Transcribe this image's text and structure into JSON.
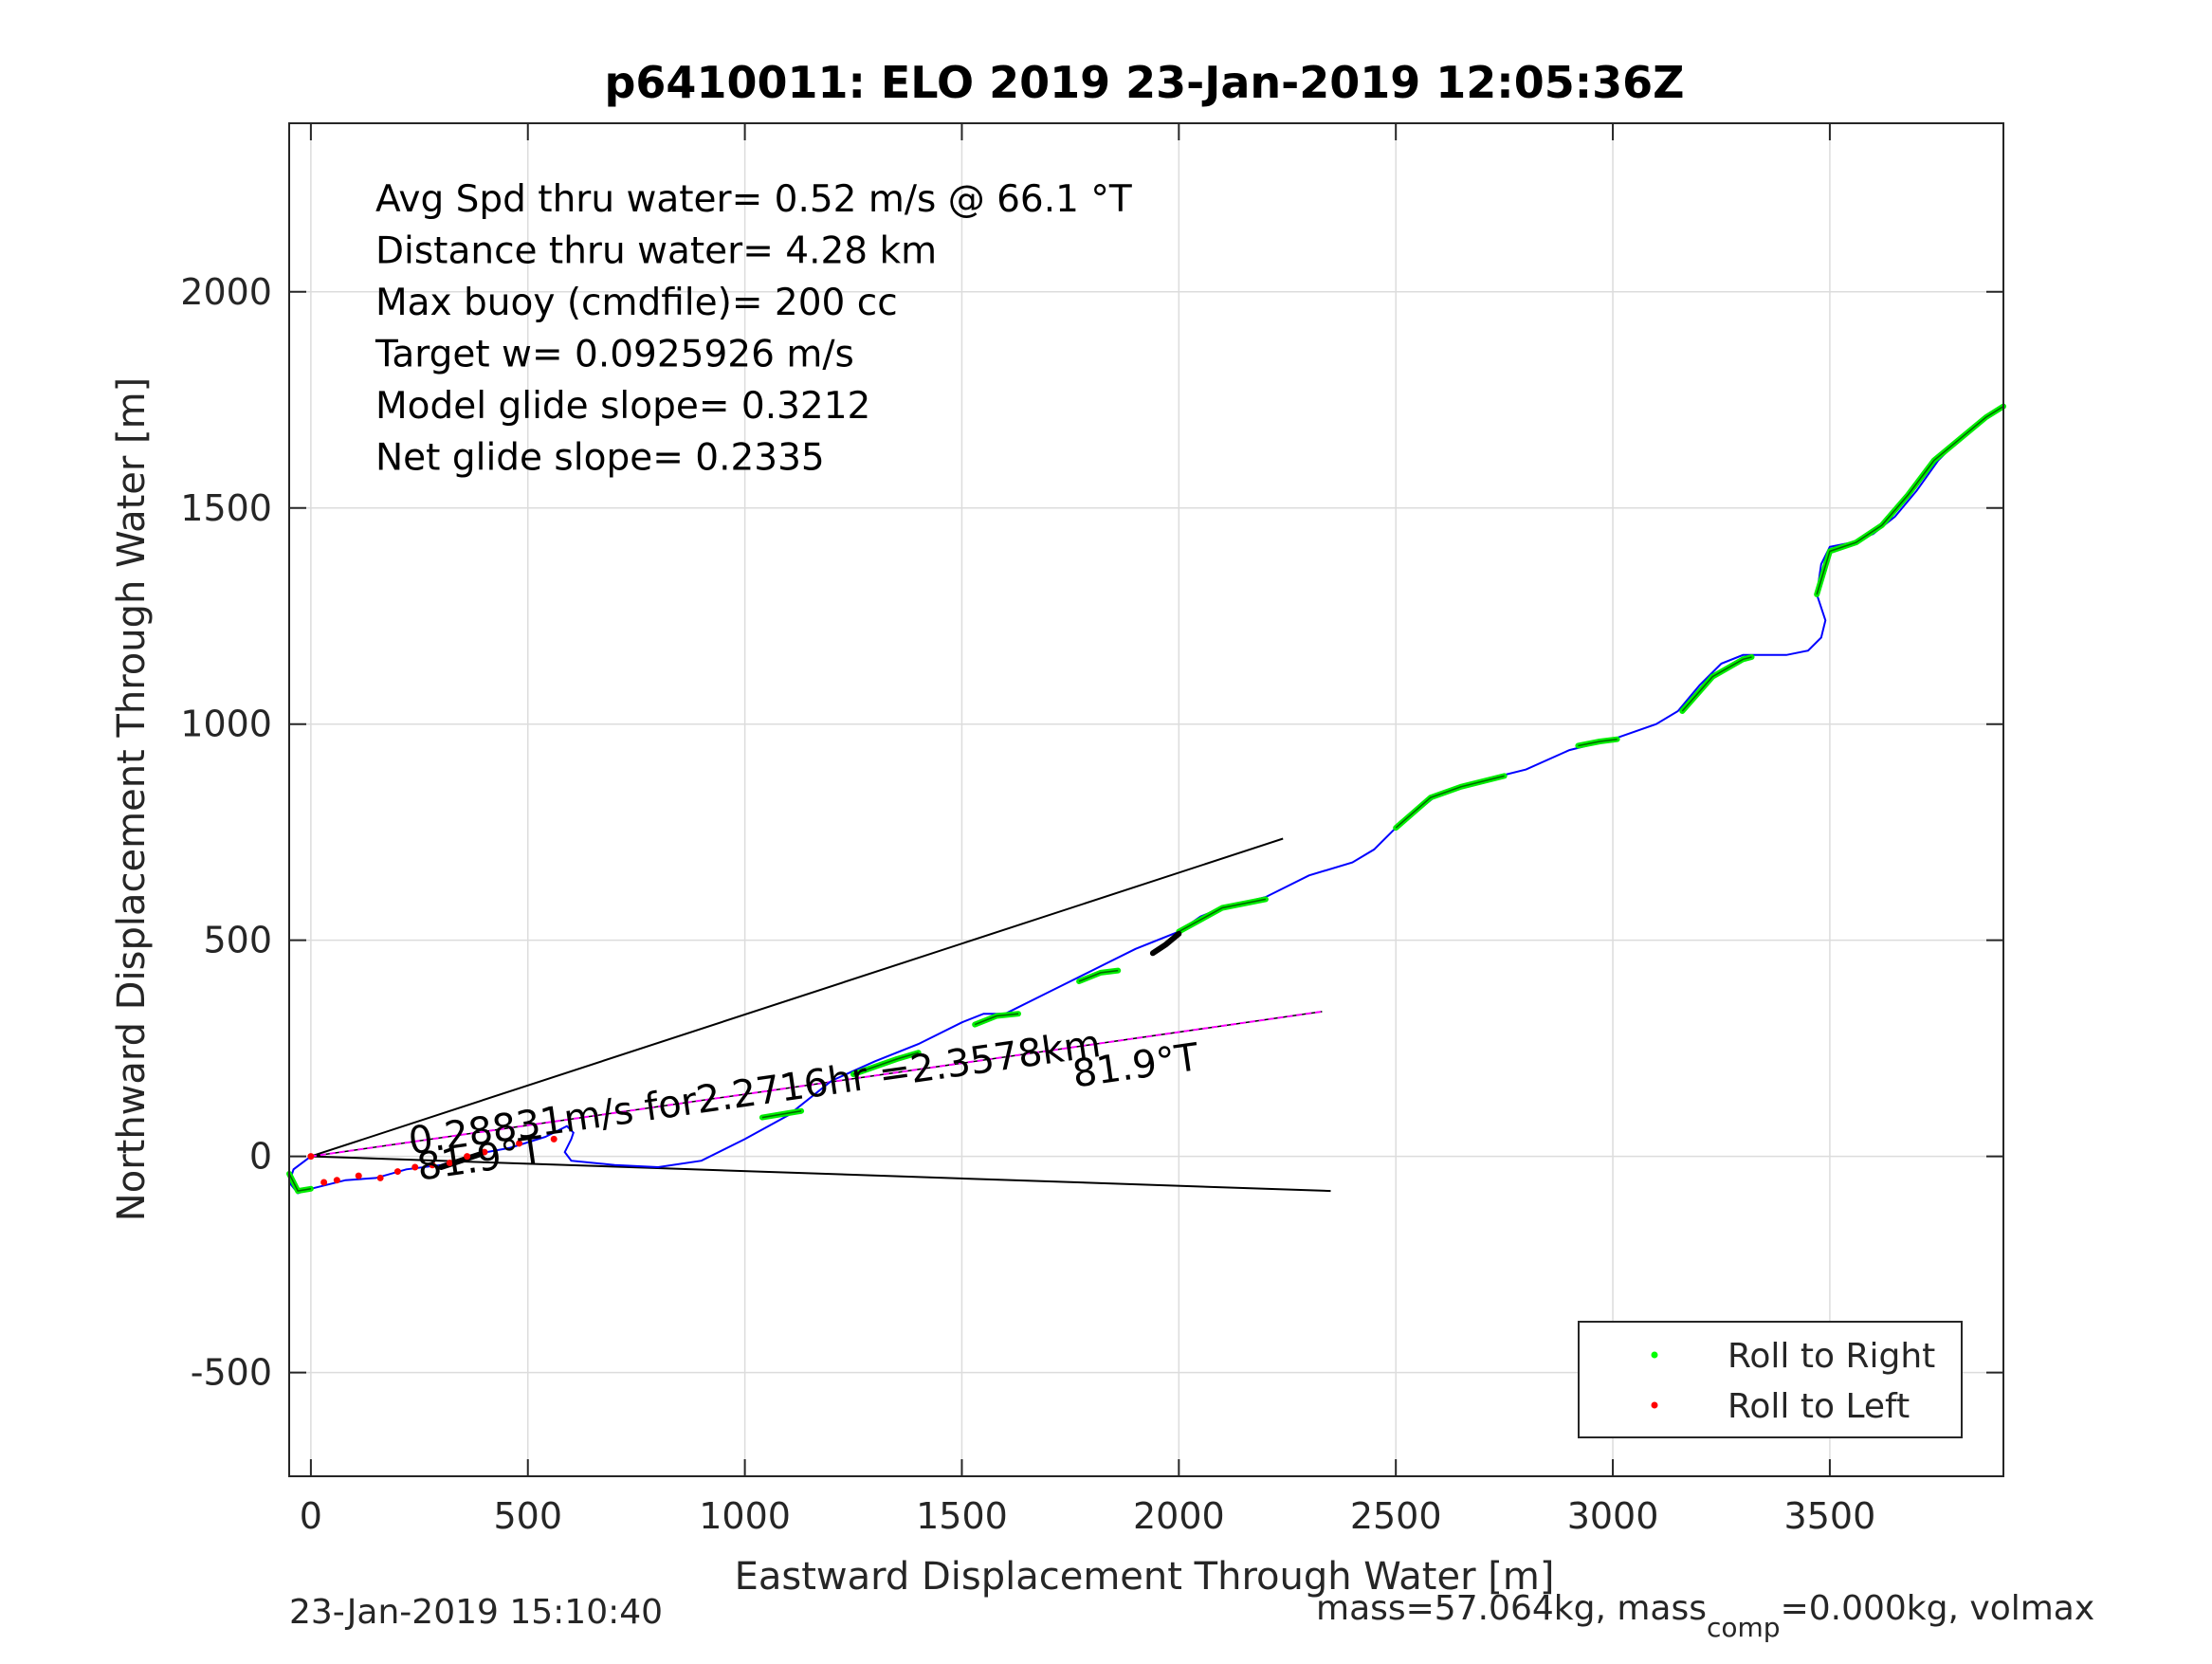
{
  "chart_data": {
    "type": "line",
    "title": "p6410011: ELO 2019 23-Jan-2019 12:05:36Z",
    "xlabel": "Eastward Displacement Through Water [m]",
    "ylabel": "Northward Displacement Through Water [m]",
    "xlim": [
      -50,
      3900
    ],
    "ylim": [
      -740,
      2390
    ],
    "xticks": [
      0,
      500,
      1000,
      1500,
      2000,
      2500,
      3000,
      3500
    ],
    "xtick_labels": [
      "0",
      "500",
      "1000",
      "1500",
      "2000",
      "2500",
      "3000",
      "3500"
    ],
    "yticks": [
      -500,
      0,
      500,
      1000,
      1500,
      2000
    ],
    "ytick_labels": [
      "-500",
      "0",
      "500",
      "1000",
      "1500",
      "2000"
    ],
    "grid": true,
    "info_lines": [
      "Avg Spd thru water=  0.52 m/s @  66.1 °T",
      "Distance thru water=  4.28 km",
      "Max buoy (cmdfile)= 200 cc",
      "Target w= 0.0925926 m/s",
      "Model glide slope= 0.3212",
      "Net glide slope= 0.2335"
    ],
    "footer_left": "23-Jan-2019 15:10:40",
    "footer_right_prefix": "mass=57.064kg, mass",
    "footer_right_sub": "comp",
    "footer_right_suffix": "=0.000kg, volmax",
    "legend": {
      "placement": "bottom-right",
      "entries": [
        {
          "name": "Roll to Right",
          "color": "#00ff00"
        },
        {
          "name": "Roll to Left",
          "color": "#ff0000"
        }
      ]
    },
    "annotations": [
      {
        "text": "0.28831m/s for2.2716hr =2.3578km",
        "x": 230,
        "y": 5,
        "angle_deg": -8.1
      },
      {
        "text": "81.9°T",
        "x": 250,
        "y": -55,
        "angle_deg": -8.1
      },
      {
        "text": "81.9°T",
        "x": 1760,
        "y": 160,
        "angle_deg": -8.1
      }
    ],
    "cone_lines": [
      {
        "x": [
          0,
          2240
        ],
        "y": [
          0,
          735
        ],
        "color": "#000000"
      },
      {
        "x": [
          0,
          2350
        ],
        "y": [
          0,
          -80
        ],
        "color": "#000000"
      }
    ],
    "current_line": {
      "x": [
        0,
        2330
      ],
      "y": [
        0,
        335
      ],
      "color": "#ff00ff",
      "overlay_color": "#000000"
    },
    "track": {
      "color": "#0000ff",
      "x": [
        0,
        -40,
        -50,
        -30,
        0,
        80,
        150,
        220,
        300,
        380,
        460,
        540,
        590,
        605,
        600,
        585,
        600,
        700,
        800,
        900,
        1000,
        1100,
        1200,
        1300,
        1400,
        1500,
        1550,
        1600,
        1700,
        1800,
        1900,
        2000,
        2050,
        2100,
        2200,
        2300,
        2400,
        2450,
        2500,
        2600,
        2700,
        2800,
        2900,
        3000,
        3100,
        3150,
        3200,
        3250,
        3300,
        3350,
        3400,
        3450,
        3480,
        3490,
        3470,
        3480,
        3500,
        3550,
        3600,
        3650,
        3700,
        3750,
        3800,
        3850,
        3900
      ],
      "y": [
        0,
        -30,
        -60,
        -85,
        -75,
        -55,
        -50,
        -30,
        -20,
        5,
        20,
        45,
        70,
        55,
        40,
        10,
        -10,
        -20,
        -25,
        -10,
        40,
        95,
        175,
        220,
        260,
        310,
        330,
        330,
        380,
        430,
        480,
        520,
        555,
        575,
        600,
        650,
        680,
        710,
        760,
        840,
        870,
        895,
        940,
        965,
        1000,
        1030,
        1090,
        1140,
        1160,
        1160,
        1160,
        1170,
        1200,
        1240,
        1300,
        1370,
        1410,
        1420,
        1440,
        1480,
        1540,
        1610,
        1660,
        1700,
        1735
      ]
    },
    "roll_right_segments": [
      {
        "x": [
          -50,
          -30,
          0
        ],
        "y": [
          -40,
          -80,
          -75
        ]
      },
      {
        "x": [
          1040,
          1100,
          1130
        ],
        "y": [
          90,
          100,
          105
        ]
      },
      {
        "x": [
          1250,
          1350,
          1400
        ],
        "y": [
          190,
          225,
          240
        ]
      },
      {
        "x": [
          1530,
          1580,
          1630
        ],
        "y": [
          305,
          325,
          330
        ]
      },
      {
        "x": [
          1770,
          1820,
          1860
        ],
        "y": [
          405,
          425,
          430
        ]
      },
      {
        "x": [
          2000,
          2100,
          2200
        ],
        "y": [
          520,
          575,
          595
        ]
      },
      {
        "x": [
          2500,
          2580,
          2650,
          2750
        ],
        "y": [
          760,
          830,
          855,
          880
        ]
      },
      {
        "x": [
          2920,
          2970,
          3010
        ],
        "y": [
          950,
          960,
          965
        ]
      },
      {
        "x": [
          3160,
          3230,
          3300,
          3320
        ],
        "y": [
          1030,
          1110,
          1150,
          1155
        ]
      },
      {
        "x": [
          3470,
          3500,
          3560,
          3620,
          3680,
          3740,
          3800,
          3860,
          3900
        ],
        "y": [
          1300,
          1400,
          1420,
          1460,
          1530,
          1610,
          1660,
          1710,
          1735
        ]
      }
    ],
    "roll_left_points": {
      "x": [
        0,
        30,
        60,
        110,
        160,
        200,
        240,
        280,
        320,
        360,
        400,
        480,
        560
      ],
      "y": [
        0,
        -60,
        -55,
        -45,
        -50,
        -35,
        -25,
        -20,
        -15,
        0,
        10,
        30,
        40
      ]
    },
    "thick_black_segments": [
      {
        "x": [
          300,
          330,
          360,
          390
        ],
        "y": [
          -25,
          -15,
          -5,
          5
        ]
      },
      {
        "x": [
          1940,
          1970,
          2000
        ],
        "y": [
          470,
          490,
          515
        ]
      }
    ]
  }
}
